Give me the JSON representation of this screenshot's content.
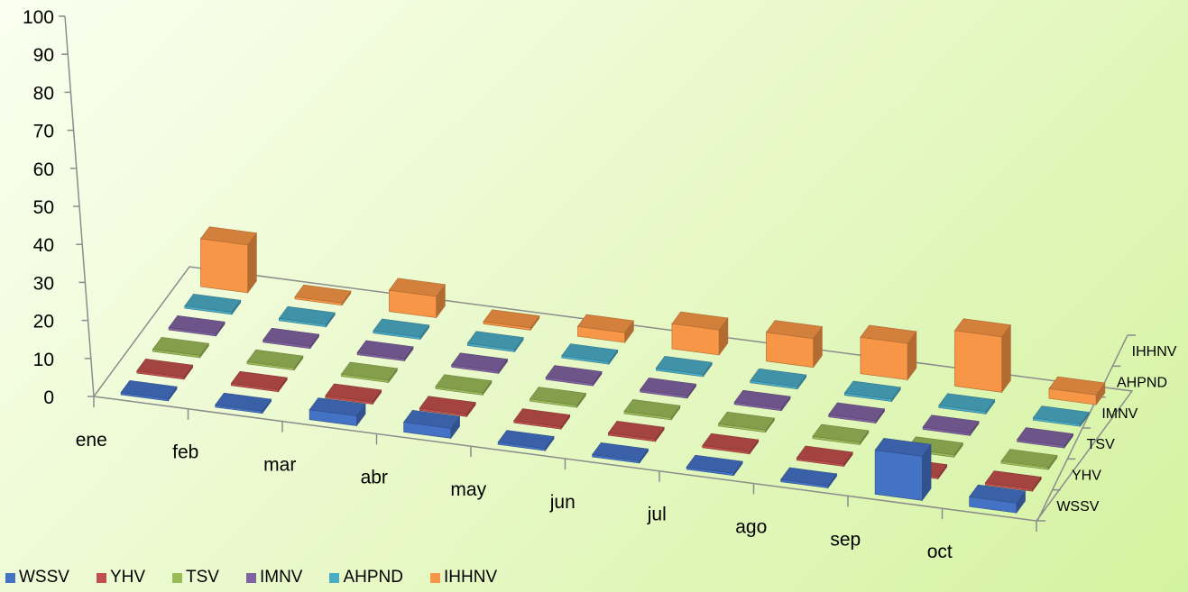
{
  "chart_data": {
    "type": "bar",
    "subtype": "3d-column-grid",
    "title": "",
    "categories": [
      "ene",
      "feb",
      "mar",
      "abr",
      "may",
      "jun",
      "jul",
      "ago",
      "sep",
      "oct"
    ],
    "yticks": [
      "0",
      "10",
      "20",
      "30",
      "40",
      "50",
      "60",
      "70",
      "80",
      "90",
      "100"
    ],
    "ylim": [
      0,
      100
    ],
    "series": [
      {
        "name": "WSSV",
        "color": "#4472C4",
        "values": [
          0,
          0,
          2,
          2,
          0,
          0,
          0,
          0,
          11,
          2
        ]
      },
      {
        "name": "YHV",
        "color": "#C0504D",
        "values": [
          0,
          0,
          0,
          0,
          0,
          0,
          0,
          0,
          0,
          0
        ]
      },
      {
        "name": "TSV",
        "color": "#9BBB59",
        "values": [
          0,
          0,
          0,
          0,
          0,
          0,
          0,
          0,
          0,
          0
        ]
      },
      {
        "name": "IMNV",
        "color": "#8064A2",
        "values": [
          0,
          0,
          0,
          0,
          0,
          0,
          0,
          0,
          0,
          0
        ]
      },
      {
        "name": "AHPND",
        "color": "#4BACC6",
        "values": [
          0,
          0,
          0,
          0,
          0,
          0,
          0,
          0,
          0,
          0
        ]
      },
      {
        "name": "IHHNV",
        "color": "#F79646",
        "values": [
          12,
          0,
          5,
          0,
          2,
          6,
          7,
          9,
          14,
          2
        ]
      }
    ],
    "grid": false,
    "legend": "bottom-left"
  }
}
